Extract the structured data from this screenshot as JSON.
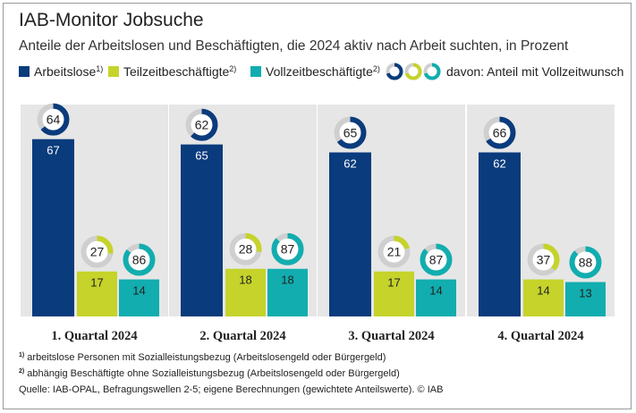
{
  "chart_data": {
    "type": "bar",
    "title": "IAB-Monitor Jobsuche",
    "subtitle": "Anteile der Arbeitslosen und Beschäftigten, die 2024 aktiv nach Arbeit suchten, in Prozent",
    "categories": [
      "1. Quartal 2024",
      "2. Quartal 2024",
      "3. Quartal 2024",
      "4. Quartal 2024"
    ],
    "series": [
      {
        "name": "Arbeitslose",
        "sup": "1)",
        "color": "#0a3b7c",
        "label_color": "#ffffff",
        "values": [
          67,
          65,
          62,
          62
        ]
      },
      {
        "name": "Teilzeitbeschäftigte",
        "sup": "2)",
        "color": "#c5d32a",
        "label_color": "#222222",
        "values": [
          17,
          18,
          17,
          14
        ]
      },
      {
        "name": "Vollzeitbeschäftigte",
        "sup": "2)",
        "color": "#12adaf",
        "label_color": "#222222",
        "values": [
          14,
          18,
          14,
          13
        ]
      }
    ],
    "donut_series": {
      "name": "davon: Anteil mit Vollzeitwunsch",
      "values": [
        [
          64,
          27,
          86
        ],
        [
          62,
          28,
          87
        ],
        [
          65,
          21,
          87
        ],
        [
          66,
          37,
          88
        ]
      ],
      "track_color": "#cfcfcf"
    },
    "ylim": [
      0,
      100
    ],
    "grid": false,
    "group_background": "#e6e6e6"
  },
  "footnotes": [
    {
      "sup": "1)",
      "text": " arbeitslose Personen mit Sozialleistungsbezug (Arbeitslosengeld oder Bürgergeld)"
    },
    {
      "sup": "2)",
      "text": " abhängig Beschäftigte ohne Sozialleistungsbezug (Arbeitslosengeld oder Bürgergeld)"
    }
  ],
  "source": "Quelle: IAB-OPAL, Befragungswellen 2-5; eigene Berechnungen (gewichtete Anteilswerte). © IAB"
}
